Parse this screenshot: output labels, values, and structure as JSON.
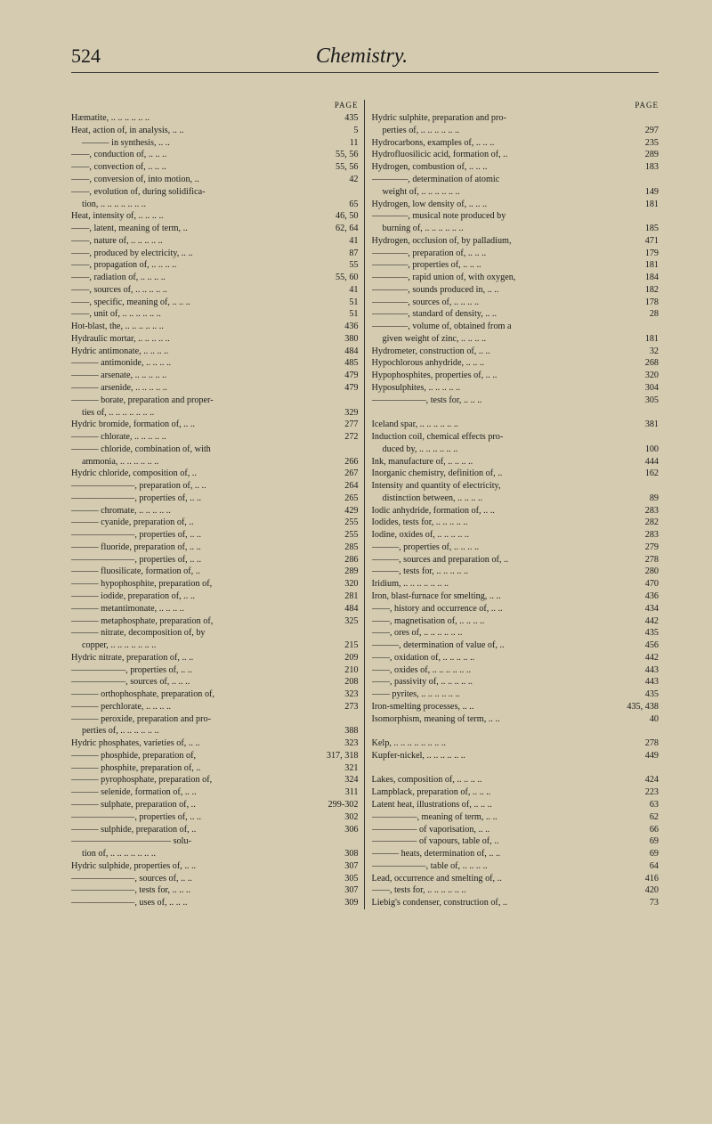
{
  "header": {
    "pageNumber": "524",
    "title": "Chemistry."
  },
  "pageLabel": "PAGE",
  "leftColumn": [
    {
      "text": "Hæmatite, .. .. .. .. .. ..",
      "page": "435",
      "indent": 0
    },
    {
      "text": "Heat, action of, in analysis, .. ..",
      "page": "5",
      "indent": 0
    },
    {
      "text": "——— in synthesis, .. ..",
      "page": "11",
      "indent": 1
    },
    {
      "text": "——, conduction of, .. .. ..",
      "page": "55, 56",
      "indent": 0
    },
    {
      "text": "——, convection of, .. .. ..",
      "page": "55, 56",
      "indent": 0
    },
    {
      "text": "——, conversion of, into motion, ..",
      "page": "42",
      "indent": 0
    },
    {
      "text": "——, evolution of, during solidifica-",
      "page": "",
      "indent": 0
    },
    {
      "text": "tion, .. .. .. .. .. .. ..",
      "page": "65",
      "indent": 1
    },
    {
      "text": "Heat, intensity of, .. .. .. ..",
      "page": "46, 50",
      "indent": 0
    },
    {
      "text": "——, latent, meaning of term, ..",
      "page": "62, 64",
      "indent": 0
    },
    {
      "text": "——, nature of, .. .. .. .. ..",
      "page": "41",
      "indent": 0
    },
    {
      "text": "——, produced by electricity, .. ..",
      "page": "87",
      "indent": 0
    },
    {
      "text": "——, propagation of, .. .. .. ..",
      "page": "55",
      "indent": 0
    },
    {
      "text": "——, radiation of, .. .. .. ..",
      "page": "55, 60",
      "indent": 0
    },
    {
      "text": "——, sources of, .. .. .. .. ..",
      "page": "41",
      "indent": 0
    },
    {
      "text": "——, specific, meaning of, .. .. ..",
      "page": "51",
      "indent": 0
    },
    {
      "text": "——, unit of, .. .. .. .. .. ..",
      "page": "51",
      "indent": 0
    },
    {
      "text": "Hot-blast, the, .. .. .. .. .. ..",
      "page": "436",
      "indent": 0
    },
    {
      "text": "Hydraulic mortar, .. .. .. .. ..",
      "page": "380",
      "indent": 0
    },
    {
      "text": "Hydric antimonate, .. .. .. ..",
      "page": "484",
      "indent": 0
    },
    {
      "text": "——— antimonide, .. .. .. ..",
      "page": "485",
      "indent": 0
    },
    {
      "text": "——— arsenate, .. .. .. .. ..",
      "page": "479",
      "indent": 0
    },
    {
      "text": "——— arsenide, .. .. .. .. ..",
      "page": "479",
      "indent": 0
    },
    {
      "text": "——— borate, preparation and proper-",
      "page": "",
      "indent": 0
    },
    {
      "text": "ties of, .. .. .. .. .. .. ..",
      "page": "329",
      "indent": 1
    },
    {
      "text": "Hydric bromide, formation of, .. ..",
      "page": "277",
      "indent": 0
    },
    {
      "text": "——— chlorate, .. .. .. .. ..",
      "page": "272",
      "indent": 0
    },
    {
      "text": "——— chloride, combination of, with",
      "page": "",
      "indent": 0
    },
    {
      "text": "ammonia, .. .. .. .. .. ..",
      "page": "266",
      "indent": 1
    },
    {
      "text": "Hydric chloride, composition of, ..",
      "page": "267",
      "indent": 0
    },
    {
      "text": "———————, preparation of, .. ..",
      "page": "264",
      "indent": 0
    },
    {
      "text": "———————, properties of, .. ..",
      "page": "265",
      "indent": 0
    },
    {
      "text": "——— chromate, .. .. .. .. ..",
      "page": "429",
      "indent": 0
    },
    {
      "text": "——— cyanide, preparation of, ..",
      "page": "255",
      "indent": 0
    },
    {
      "text": "———————, properties of, .. ..",
      "page": "255",
      "indent": 0
    },
    {
      "text": "——— fluoride, preparation of, .. ..",
      "page": "285",
      "indent": 0
    },
    {
      "text": "———————, properties of, .. ..",
      "page": "286",
      "indent": 0
    },
    {
      "text": "——— fluosilicate, formation of, ..",
      "page": "289",
      "indent": 0
    },
    {
      "text": "——— hypophosphite, preparation of,",
      "page": "320",
      "indent": 0
    },
    {
      "text": "——— iodide, preparation of, .. ..",
      "page": "281",
      "indent": 0
    },
    {
      "text": "——— metantimonate, .. .. .. ..",
      "page": "484",
      "indent": 0
    },
    {
      "text": "——— metaphosphate, preparation of,",
      "page": "325",
      "indent": 0
    },
    {
      "text": "——— nitrate, decomposition of, by",
      "page": "",
      "indent": 0
    },
    {
      "text": "copper, .. .. .. .. .. .. ..",
      "page": "215",
      "indent": 1
    },
    {
      "text": "Hydric nitrate, preparation of, .. ..",
      "page": "209",
      "indent": 0
    },
    {
      "text": "——————, properties of, .. ..",
      "page": "210",
      "indent": 0
    },
    {
      "text": "——————, sources of, .. .. ..",
      "page": "208",
      "indent": 0
    },
    {
      "text": "——— orthophosphate, preparation of,",
      "page": "323",
      "indent": 0
    },
    {
      "text": "——— perchlorate, .. .. .. ..",
      "page": "273",
      "indent": 0
    },
    {
      "text": "——— peroxide, preparation and pro-",
      "page": "",
      "indent": 0
    },
    {
      "text": "perties of, .. .. .. .. .. ..",
      "page": "388",
      "indent": 1
    },
    {
      "text": "Hydric phosphates, varieties of, .. ..",
      "page": "323",
      "indent": 0
    },
    {
      "text": "——— phosphide, preparation of,",
      "page": "317, 318",
      "indent": 0
    },
    {
      "text": "——— phosphite, preparation of, ..",
      "page": "321",
      "indent": 0
    },
    {
      "text": "——— pyrophosphate, preparation of,",
      "page": "324",
      "indent": 0
    },
    {
      "text": "——— selenide, formation of, .. ..",
      "page": "311",
      "indent": 0
    },
    {
      "text": "——— sulphate, preparation of, ..",
      "page": "299-302",
      "indent": 0
    },
    {
      "text": "———————, properties of, .. ..",
      "page": "302",
      "indent": 0
    },
    {
      "text": "——— sulphide, preparation of, ..",
      "page": "306",
      "indent": 0
    },
    {
      "text": "——————————— solu-",
      "page": "",
      "indent": 0
    },
    {
      "text": "tion of, .. .. .. .. .. .. ..",
      "page": "308",
      "indent": 1
    },
    {
      "text": "Hydric sulphide, properties of, .. ..",
      "page": "307",
      "indent": 0
    },
    {
      "text": "———————, sources of, .. ..",
      "page": "305",
      "indent": 0
    },
    {
      "text": "———————, tests for, .. .. ..",
      "page": "307",
      "indent": 0
    },
    {
      "text": "———————, uses of, .. .. ..",
      "page": "309",
      "indent": 0
    }
  ],
  "rightColumn": [
    {
      "text": "Hydric sulphite, preparation and pro-",
      "page": "",
      "indent": 0
    },
    {
      "text": "perties of, .. .. .. .. .. ..",
      "page": "297",
      "indent": 1
    },
    {
      "text": "Hydrocarbons, examples of, .. .. ..",
      "page": "235",
      "indent": 0
    },
    {
      "text": "Hydrofluosilicic acid, formation of, ..",
      "page": "289",
      "indent": 0
    },
    {
      "text": "Hydrogen, combustion of, .. .. ..",
      "page": "183",
      "indent": 0
    },
    {
      "text": "————, determination of atomic",
      "page": "",
      "indent": 0
    },
    {
      "text": "weight of, .. .. .. .. .. ..",
      "page": "149",
      "indent": 1
    },
    {
      "text": "Hydrogen, low density of, .. .. ..",
      "page": "181",
      "indent": 0
    },
    {
      "text": "————, musical note produced by",
      "page": "",
      "indent": 0
    },
    {
      "text": "burning of, .. .. .. .. .. ..",
      "page": "185",
      "indent": 1
    },
    {
      "text": "Hydrogen, occlusion of, by palladium,",
      "page": "471",
      "indent": 0
    },
    {
      "text": "————, preparation of, .. .. ..",
      "page": "179",
      "indent": 0
    },
    {
      "text": "————, properties of, .. .. ..",
      "page": "181",
      "indent": 0
    },
    {
      "text": "————, rapid union of, with oxygen,",
      "page": "184",
      "indent": 0
    },
    {
      "text": "————, sounds produced in, .. ..",
      "page": "182",
      "indent": 0
    },
    {
      "text": "————, sources of, .. .. .. ..",
      "page": "178",
      "indent": 0
    },
    {
      "text": "————, standard of density, .. ..",
      "page": "28",
      "indent": 0
    },
    {
      "text": "————, volume of, obtained from a",
      "page": "",
      "indent": 0
    },
    {
      "text": "given weight of zinc, .. .. .. ..",
      "page": "181",
      "indent": 1
    },
    {
      "text": "Hydrometer, construction of, .. ..",
      "page": "32",
      "indent": 0
    },
    {
      "text": "Hypochlorous anhydride, .. .. ..",
      "page": "268",
      "indent": 0
    },
    {
      "text": "Hypophosphites, properties of, .. ..",
      "page": "320",
      "indent": 0
    },
    {
      "text": "Hyposulphites, .. .. .. .. ..",
      "page": "304",
      "indent": 0
    },
    {
      "text": "——————, tests for, .. .. ..",
      "page": "305",
      "indent": 0
    },
    {
      "text": "",
      "page": "",
      "indent": 0
    },
    {
      "text": "Iceland spar, .. .. .. .. .. ..",
      "page": "381",
      "indent": 0
    },
    {
      "text": "Induction coil, chemical effects pro-",
      "page": "",
      "indent": 0
    },
    {
      "text": "duced by, .. .. .. .. .. ..",
      "page": "100",
      "indent": 1
    },
    {
      "text": "Ink, manufacture of, .. .. .. ..",
      "page": "444",
      "indent": 0
    },
    {
      "text": "Inorganic chemistry, definition of, ..",
      "page": "162",
      "indent": 0
    },
    {
      "text": "Intensity and quantity of electricity,",
      "page": "",
      "indent": 0
    },
    {
      "text": "distinction between, .. .. .. ..",
      "page": "89",
      "indent": 1
    },
    {
      "text": "Iodic anhydride, formation of, .. ..",
      "page": "283",
      "indent": 0
    },
    {
      "text": "Iodides, tests for, .. .. .. .. ..",
      "page": "282",
      "indent": 0
    },
    {
      "text": "Iodine, oxides of, .. .. .. .. ..",
      "page": "283",
      "indent": 0
    },
    {
      "text": "———, properties of, .. .. .. ..",
      "page": "279",
      "indent": 0
    },
    {
      "text": "———, sources and preparation of, ..",
      "page": "278",
      "indent": 0
    },
    {
      "text": "———, tests for, .. .. .. .. ..",
      "page": "280",
      "indent": 0
    },
    {
      "text": "Iridium, .. .. .. .. .. .. ..",
      "page": "470",
      "indent": 0
    },
    {
      "text": "Iron, blast-furnace for smelting, .. ..",
      "page": "436",
      "indent": 0
    },
    {
      "text": "——, history and occurrence of, .. ..",
      "page": "434",
      "indent": 0
    },
    {
      "text": "——, magnetisation of, .. .. .. ..",
      "page": "442",
      "indent": 0
    },
    {
      "text": "——, ores of, .. .. .. .. .. ..",
      "page": "435",
      "indent": 0
    },
    {
      "text": "———, determination of value of, ..",
      "page": "456",
      "indent": 0
    },
    {
      "text": "——, oxidation of, .. .. .. .. ..",
      "page": "442",
      "indent": 0
    },
    {
      "text": "——, oxides of, .. .. .. .. .. ..",
      "page": "443",
      "indent": 0
    },
    {
      "text": "——, passivity of, .. .. .. .. ..",
      "page": "443",
      "indent": 0
    },
    {
      "text": "—— pyrites, .. .. .. .. .. ..",
      "page": "435",
      "indent": 0
    },
    {
      "text": "Iron-smelting processes, .. ..",
      "page": "435, 438",
      "indent": 0
    },
    {
      "text": "Isomorphism, meaning of term, .. ..",
      "page": "40",
      "indent": 0
    },
    {
      "text": "",
      "page": "",
      "indent": 0
    },
    {
      "text": "Kelp, .. .. .. .. .. .. .. ..",
      "page": "278",
      "indent": 0
    },
    {
      "text": "Kupfer-nickel, .. .. .. .. .. ..",
      "page": "449",
      "indent": 0
    },
    {
      "text": "",
      "page": "",
      "indent": 0
    },
    {
      "text": "Lakes, composition of, .. .. .. ..",
      "page": "424",
      "indent": 0
    },
    {
      "text": "Lampblack, preparation of, .. .. ..",
      "page": "223",
      "indent": 0
    },
    {
      "text": "Latent heat, illustrations of, .. .. ..",
      "page": "63",
      "indent": 0
    },
    {
      "text": "—————, meaning of term, .. ..",
      "page": "62",
      "indent": 0
    },
    {
      "text": "————— of vaporisation, .. ..",
      "page": "66",
      "indent": 0
    },
    {
      "text": "————— of vapours, table of, ..",
      "page": "69",
      "indent": 0
    },
    {
      "text": "——— heats, determination of, .. ..",
      "page": "69",
      "indent": 0
    },
    {
      "text": "——————, table of, .. .. .. ..",
      "page": "64",
      "indent": 0
    },
    {
      "text": "Lead, occurrence and smelting of, ..",
      "page": "416",
      "indent": 0
    },
    {
      "text": "——, tests for, .. .. .. .. .. ..",
      "page": "420",
      "indent": 0
    },
    {
      "text": "Liebig's condenser, construction of, ..",
      "page": "73",
      "indent": 0
    }
  ]
}
